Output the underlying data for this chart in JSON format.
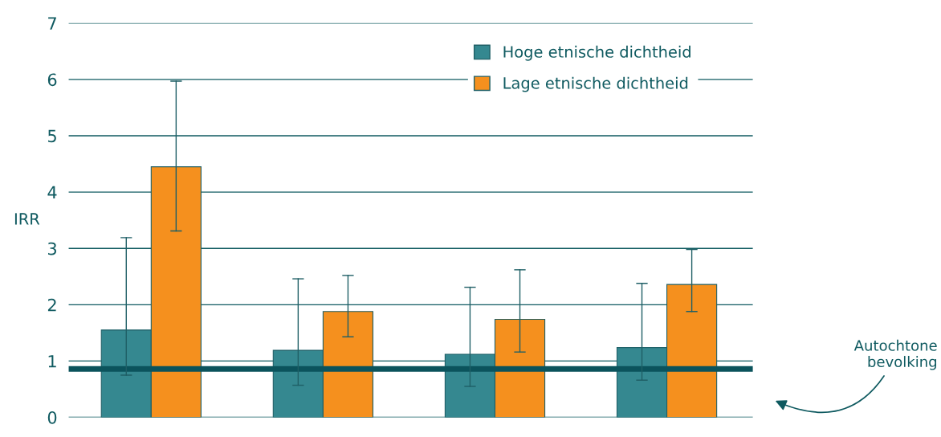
{
  "chart_data": {
    "type": "bar",
    "ylabel": "IRR",
    "categories": [
      null,
      null,
      null,
      null
    ],
    "series": [
      {
        "name": "Hoge etnische dichtheid",
        "color": "#358890",
        "values": [
          1.55,
          1.19,
          1.12,
          1.24
        ],
        "errors": [
          [
            0.75,
            3.19
          ],
          [
            0.57,
            2.46
          ],
          [
            0.55,
            2.31
          ],
          [
            0.66,
            2.38
          ]
        ]
      },
      {
        "name": "Lage etnische dichtheid",
        "color": "#f5901e",
        "values": [
          4.45,
          1.88,
          1.74,
          2.36
        ],
        "errors": [
          [
            3.31,
            5.97
          ],
          [
            1.43,
            2.52
          ],
          [
            1.16,
            2.62
          ],
          [
            1.88,
            2.98
          ]
        ]
      }
    ],
    "ylim": [
      0,
      7
    ],
    "yticks": [
      0,
      1,
      2,
      3,
      4,
      5,
      6,
      7
    ],
    "grid": "y",
    "legend": "top right",
    "ref_lines": [
      {
        "axis": "y",
        "value": 0.86,
        "label": "Autochtone\nbevolking",
        "color": "#0b535c"
      }
    ]
  }
}
